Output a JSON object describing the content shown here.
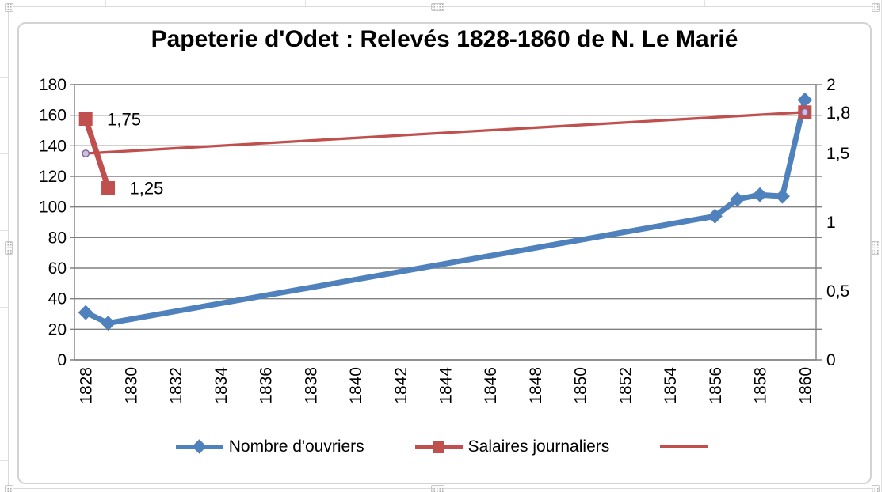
{
  "title": "Papeterie d'Odet : Relevés 1828-1860 de N. Le Marié",
  "colors": {
    "series_blue": "#4F81BD",
    "series_red": "#C0504D",
    "trend_marker_fill": "#CCC1DA",
    "trend_marker_stroke": "#8064A2",
    "gridline": "#808080",
    "axis_text": "#000000",
    "chart_border": "#D3D3D3",
    "sheet_gridline": "#DADADA"
  },
  "chart_data": {
    "type": "line",
    "title": "Papeterie d'Odet : Relevés 1828-1860 de N. Le Marié",
    "grid": "horizontal",
    "legend_position": "bottom",
    "x_axis": {
      "min": 1828,
      "max": 1860,
      "tick_step": 2,
      "tick_labels": [
        "1828",
        "1830",
        "1832",
        "1834",
        "1836",
        "1838",
        "1840",
        "1842",
        "1844",
        "1846",
        "1848",
        "1850",
        "1852",
        "1854",
        "1856",
        "1858",
        "1860"
      ]
    },
    "left_axis": {
      "min": 0,
      "max": 180,
      "step": 20,
      "tick_labels": [
        "0",
        "20",
        "40",
        "60",
        "80",
        "100",
        "120",
        "140",
        "160",
        "180"
      ]
    },
    "right_axis": {
      "min": 0,
      "max": 2,
      "step": 0.5,
      "tick_labels": [
        "0",
        "0,5",
        "1",
        "1,5",
        "2"
      ]
    },
    "series": [
      {
        "name": "Nombre d'ouvriers",
        "axis": "left",
        "color": "#4F81BD",
        "marker": "diamond",
        "line_width": 7,
        "points": [
          {
            "x": 1828,
            "y": 31
          },
          {
            "x": 1829,
            "y": 24
          },
          {
            "x": 1856,
            "y": 94
          },
          {
            "x": 1857,
            "y": 105
          },
          {
            "x": 1858,
            "y": 108
          },
          {
            "x": 1859,
            "y": 107
          },
          {
            "x": 1860,
            "y": 170
          }
        ]
      },
      {
        "name": "Salaires journaliers",
        "axis": "right",
        "color": "#C0504D",
        "marker": "square",
        "line_width": 7,
        "points": [
          {
            "x": 1828,
            "y": 1.75,
            "label": "1,75"
          },
          {
            "x": 1829,
            "y": 1.25,
            "label": "1,25"
          },
          {
            "x": 1860,
            "y": 1.8,
            "label": "1,8",
            "gap_before": true
          }
        ]
      },
      {
        "name": "",
        "axis": "right",
        "color": "#C0504D",
        "marker": "circle",
        "line_width": 3.3,
        "marker_fill": "#CCC1DA",
        "marker_stroke": "#8064A2",
        "points": [
          {
            "x": 1828,
            "y": 1.5
          },
          {
            "x": 1860,
            "y": 1.8
          }
        ]
      }
    ]
  }
}
